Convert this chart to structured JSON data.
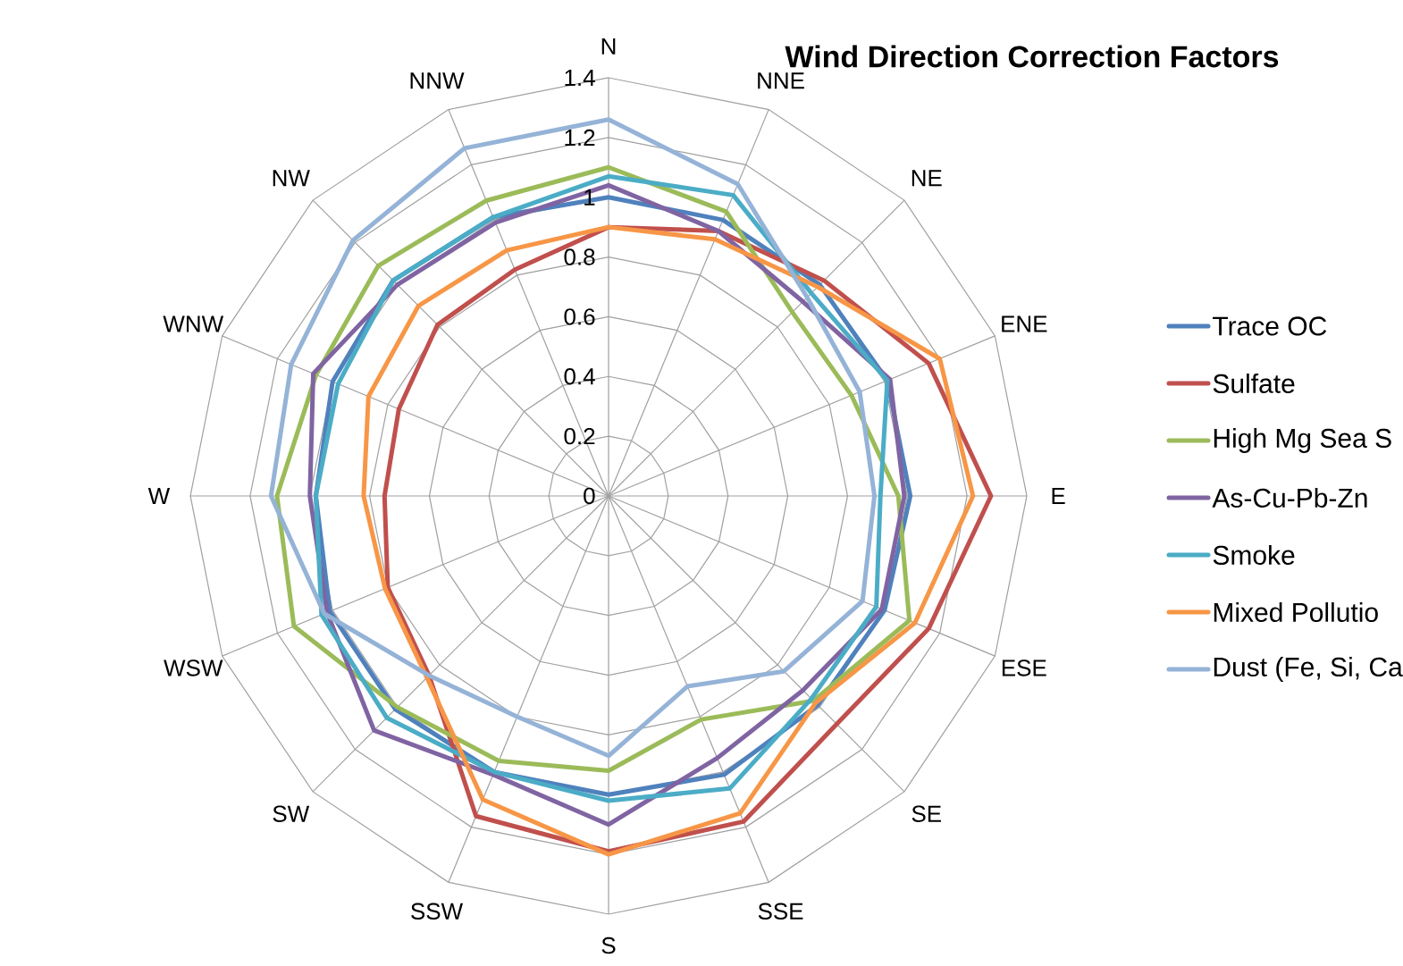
{
  "chart_data": {
    "type": "radar",
    "title": "Wind Direction Correction Factors",
    "categories": [
      "N",
      "NNE",
      "NE",
      "ENE",
      "E",
      "ESE",
      "SE",
      "SSE",
      "S",
      "SSW",
      "SW",
      "WSW",
      "W",
      "WNW",
      "NW",
      "NNW"
    ],
    "series": [
      {
        "name": "Trace OC",
        "color": "#4f81bd",
        "values": [
          1.0,
          1.0,
          1.0,
          1.01,
          1.01,
          1.0,
          0.99,
          1.01,
          1.0,
          1.0,
          1.01,
          1.01,
          0.98,
          1.0,
          1.02,
          1.01
        ]
      },
      {
        "name": "Sulfate",
        "color": "#c0504d",
        "values": [
          0.9,
          0.96,
          1.02,
          1.16,
          1.28,
          1.16,
          1.08,
          1.18,
          1.19,
          1.16,
          0.85,
          0.8,
          0.75,
          0.76,
          0.81,
          0.82
        ]
      },
      {
        "name": "High Mg Sea S",
        "color": "#9bbb59",
        "values": [
          1.1,
          1.03,
          0.87,
          0.88,
          0.97,
          1.09,
          0.97,
          0.81,
          0.92,
          0.96,
          1.0,
          1.14,
          1.11,
          1.06,
          1.09,
          1.07
        ]
      },
      {
        "name": "As-Cu-Pb-Zn",
        "color": "#8064a2",
        "values": [
          1.04,
          0.96,
          0.92,
          1.02,
          0.99,
          0.99,
          0.92,
          0.95,
          1.1,
          1.01,
          1.11,
          1.02,
          1.0,
          1.07,
          1.0,
          0.99
        ]
      },
      {
        "name": "Smoke",
        "color": "#4bacc6",
        "values": [
          1.07,
          1.09,
          0.96,
          1.01,
          0.91,
          0.97,
          0.96,
          1.06,
          1.02,
          1.0,
          1.05,
          1.04,
          0.98,
          0.98,
          1.02,
          1.01
        ]
      },
      {
        "name": "Mixed Pollutio",
        "color": "#f79646",
        "values": [
          0.9,
          0.93,
          0.99,
          1.2,
          1.22,
          1.11,
          0.98,
          1.15,
          1.2,
          1.1,
          0.86,
          0.81,
          0.82,
          0.87,
          0.9,
          0.89
        ]
      },
      {
        "name": "Dust (Fe, Si, Ca",
        "color": "#95b3d7",
        "values": [
          1.26,
          1.13,
          0.94,
          0.91,
          0.89,
          0.92,
          0.83,
          0.69,
          0.87,
          0.8,
          0.85,
          1.03,
          1.13,
          1.15,
          1.21,
          1.26
        ]
      }
    ],
    "ylim": [
      0,
      1.4
    ],
    "yticks": [
      0,
      0.2,
      0.4,
      0.6,
      0.8,
      1,
      1.2,
      1.4
    ],
    "grid": true,
    "legend": "right"
  }
}
